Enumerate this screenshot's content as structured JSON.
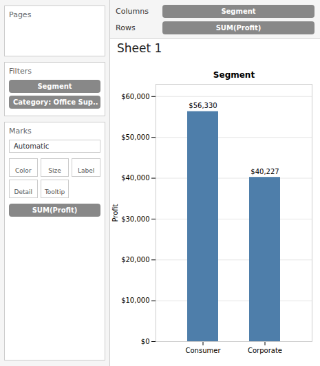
{
  "chart_data": {
    "type": "bar",
    "title": "Sheet 1",
    "xlabel": "Segment",
    "ylabel": "Profit",
    "categories": [
      "Consumer",
      "Corporate"
    ],
    "values": [
      56330,
      40227
    ],
    "value_labels": [
      "$56,330",
      "$40,227"
    ],
    "data_labels": true,
    "color": "#4e7eaa",
    "ylim": [
      0,
      63000
    ],
    "yticks": [
      {
        "value": 0,
        "label": "$0"
      },
      {
        "value": 10000,
        "label": "$10,000"
      },
      {
        "value": 20000,
        "label": "$20,000"
      },
      {
        "value": 30000,
        "label": "$30,000"
      },
      {
        "value": 40000,
        "label": "$40,000"
      },
      {
        "value": 50000,
        "label": "$50,000"
      },
      {
        "value": 60000,
        "label": "$60,000"
      }
    ],
    "grid": true,
    "annotations": [
      "Columns",
      "Segment",
      "Rows",
      "SUM(Profit)",
      "Pages",
      "Filters",
      "Segment",
      "Category: Office Sup..",
      "Marks",
      "Automatic",
      "Color",
      "Size",
      "Label",
      "Detail",
      "Tooltip",
      "SUM(Profit)"
    ]
  }
}
